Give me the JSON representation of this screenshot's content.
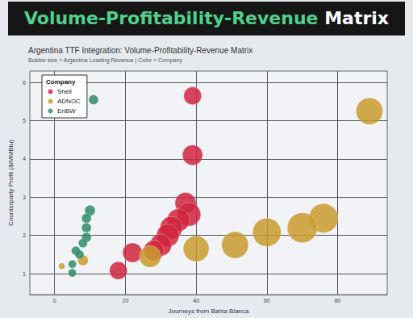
{
  "header": {
    "title": [
      "Volume-Profitability-Revenue",
      "Matrix"
    ]
  },
  "chart_data": {
    "type": "scatter",
    "title": "Argentina TTF Integration: Volume-Profitability-Revenue Matrix",
    "subtitle": "Bubble size = Argentina Loading Revenue | Color = Company",
    "x_label": "Journeys from Bahia Blanca",
    "y_label": "Counterparty Profit ($/MMBtu)",
    "legend_title": "Company",
    "legend": "upper left",
    "grid": true,
    "marker": "circle",
    "xlim": [
      -7,
      94
    ],
    "xticks": [
      0,
      20,
      40,
      60,
      80
    ],
    "ylim": [
      0.45,
      6.3
    ],
    "yticks": [
      1,
      2,
      3,
      4,
      5,
      6
    ],
    "series": [
      {
        "name": "Shell",
        "color": "#d0243e",
        "x": [
          39,
          39,
          37,
          38,
          35,
          33,
          32,
          30,
          28,
          22,
          18
        ],
        "values": [
          5.65,
          4.1,
          2.85,
          2.55,
          2.4,
          2.2,
          2.0,
          1.75,
          1.6,
          1.55,
          1.08
        ],
        "sizes": [
          48,
          63,
          68,
          84,
          78,
          78,
          78,
          73,
          63,
          58,
          48
        ]
      },
      {
        "name": "ADNOC",
        "color": "#c99a2e",
        "x": [
          89,
          76,
          70,
          60,
          51,
          40,
          27,
          8,
          2
        ],
        "values": [
          5.25,
          2.45,
          2.2,
          2.08,
          1.75,
          1.65,
          1.45,
          1.35,
          1.2
        ],
        "sizes": [
          109,
          130,
          137,
          123,
          109,
          102,
          73,
          17,
          6
        ]
      },
      {
        "name": "EnBW",
        "color": "#2e8b6a",
        "x": [
          11,
          10,
          9,
          9,
          9,
          8,
          6,
          7,
          5,
          5
        ],
        "values": [
          5.55,
          2.65,
          2.45,
          2.2,
          1.95,
          1.8,
          1.6,
          1.5,
          1.25,
          1.02
        ],
        "sizes": [
          14,
          17,
          14,
          14,
          14,
          12,
          12,
          12,
          10,
          10
        ]
      }
    ]
  }
}
